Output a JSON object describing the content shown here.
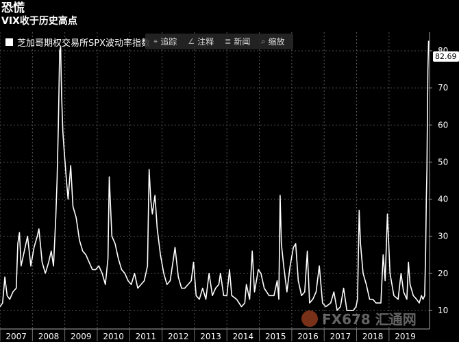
{
  "header": {
    "title": "恐慌",
    "subtitle": "VIX收于历史高点"
  },
  "legend": {
    "label": "芝加哥期权交易所SPX波动率指数"
  },
  "toolbar": {
    "items": [
      {
        "icon": "track-icon",
        "glyph": "⌖",
        "label": "追踪"
      },
      {
        "icon": "annotate-icon",
        "glyph": "∠",
        "label": "注释"
      },
      {
        "icon": "news-icon",
        "glyph": "≣",
        "label": "新闻"
      },
      {
        "icon": "zoom-icon",
        "glyph": "⌕",
        "label": "缩放"
      }
    ]
  },
  "last_value": "82.69",
  "watermark": "FX678 汇通网",
  "chart_data": {
    "type": "line",
    "title": "",
    "series": [
      {
        "name": "芝加哥期权交易所SPX波动率指数"
      }
    ],
    "x_ticks": [
      "2007",
      "2008",
      "2009",
      "2010",
      "2011",
      "2012",
      "2013",
      "2014",
      "2015",
      "2016",
      "2017",
      "2018",
      "2019"
    ],
    "y_ticks": [
      10,
      20,
      30,
      40,
      50,
      60,
      70,
      80
    ],
    "xlim": [
      2007.0,
      2020.25
    ],
    "ylim": [
      5,
      85
    ],
    "grid": true,
    "line_color": "#ffffff",
    "points": [
      [
        2007.0,
        11
      ],
      [
        2007.08,
        12
      ],
      [
        2007.15,
        19
      ],
      [
        2007.22,
        14
      ],
      [
        2007.3,
        13
      ],
      [
        2007.4,
        15
      ],
      [
        2007.5,
        16
      ],
      [
        2007.55,
        28
      ],
      [
        2007.6,
        31
      ],
      [
        2007.65,
        22
      ],
      [
        2007.75,
        26
      ],
      [
        2007.85,
        30
      ],
      [
        2007.95,
        22
      ],
      [
        2008.05,
        27
      ],
      [
        2008.15,
        30
      ],
      [
        2008.2,
        32
      ],
      [
        2008.3,
        23
      ],
      [
        2008.4,
        20
      ],
      [
        2008.5,
        23
      ],
      [
        2008.58,
        26
      ],
      [
        2008.65,
        22
      ],
      [
        2008.72,
        35
      ],
      [
        2008.76,
        45
      ],
      [
        2008.8,
        60
      ],
      [
        2008.84,
        80
      ],
      [
        2008.87,
        81
      ],
      [
        2008.9,
        68
      ],
      [
        2008.94,
        58
      ],
      [
        2008.98,
        53
      ],
      [
        2009.05,
        45
      ],
      [
        2009.1,
        40
      ],
      [
        2009.18,
        49
      ],
      [
        2009.25,
        38
      ],
      [
        2009.35,
        35
      ],
      [
        2009.45,
        29
      ],
      [
        2009.55,
        26
      ],
      [
        2009.65,
        25
      ],
      [
        2009.75,
        23
      ],
      [
        2009.85,
        21
      ],
      [
        2009.95,
        21
      ],
      [
        2010.05,
        22
      ],
      [
        2010.15,
        20
      ],
      [
        2010.25,
        17
      ],
      [
        2010.33,
        24
      ],
      [
        2010.37,
        46
      ],
      [
        2010.4,
        40
      ],
      [
        2010.45,
        30
      ],
      [
        2010.55,
        28
      ],
      [
        2010.65,
        24
      ],
      [
        2010.75,
        21
      ],
      [
        2010.85,
        20
      ],
      [
        2010.95,
        18
      ],
      [
        2011.05,
        17
      ],
      [
        2011.15,
        20
      ],
      [
        2011.25,
        16
      ],
      [
        2011.35,
        17
      ],
      [
        2011.45,
        18
      ],
      [
        2011.55,
        22
      ],
      [
        2011.6,
        48
      ],
      [
        2011.65,
        40
      ],
      [
        2011.7,
        36
      ],
      [
        2011.78,
        41
      ],
      [
        2011.85,
        32
      ],
      [
        2011.95,
        25
      ],
      [
        2012.05,
        20
      ],
      [
        2012.15,
        17
      ],
      [
        2012.25,
        18
      ],
      [
        2012.35,
        24
      ],
      [
        2012.4,
        27
      ],
      [
        2012.5,
        19
      ],
      [
        2012.6,
        16
      ],
      [
        2012.7,
        16
      ],
      [
        2012.8,
        17
      ],
      [
        2012.9,
        18
      ],
      [
        2012.97,
        23
      ],
      [
        2013.05,
        14
      ],
      [
        2013.15,
        13
      ],
      [
        2013.25,
        16
      ],
      [
        2013.35,
        13
      ],
      [
        2013.45,
        20
      ],
      [
        2013.55,
        14
      ],
      [
        2013.65,
        16
      ],
      [
        2013.75,
        17
      ],
      [
        2013.8,
        20
      ],
      [
        2013.9,
        14
      ],
      [
        2014.0,
        14
      ],
      [
        2014.08,
        21
      ],
      [
        2014.15,
        14
      ],
      [
        2014.3,
        13
      ],
      [
        2014.45,
        11
      ],
      [
        2014.55,
        12
      ],
      [
        2014.6,
        17
      ],
      [
        2014.7,
        13
      ],
      [
        2014.78,
        26
      ],
      [
        2014.85,
        15
      ],
      [
        2014.97,
        21
      ],
      [
        2015.05,
        20
      ],
      [
        2015.15,
        16
      ],
      [
        2015.3,
        14
      ],
      [
        2015.45,
        14
      ],
      [
        2015.55,
        18
      ],
      [
        2015.6,
        13
      ],
      [
        2015.64,
        41
      ],
      [
        2015.68,
        28
      ],
      [
        2015.75,
        22
      ],
      [
        2015.85,
        15
      ],
      [
        2015.95,
        22
      ],
      [
        2016.05,
        27
      ],
      [
        2016.12,
        28
      ],
      [
        2016.2,
        18
      ],
      [
        2016.3,
        14
      ],
      [
        2016.4,
        15
      ],
      [
        2016.48,
        26
      ],
      [
        2016.55,
        12
      ],
      [
        2016.65,
        13
      ],
      [
        2016.75,
        15
      ],
      [
        2016.85,
        22
      ],
      [
        2016.95,
        12
      ],
      [
        2017.05,
        11
      ],
      [
        2017.2,
        12
      ],
      [
        2017.3,
        15
      ],
      [
        2017.4,
        10
      ],
      [
        2017.5,
        11
      ],
      [
        2017.6,
        16
      ],
      [
        2017.7,
        10
      ],
      [
        2017.8,
        10
      ],
      [
        2017.9,
        10
      ],
      [
        2017.98,
        11
      ],
      [
        2018.03,
        13
      ],
      [
        2018.08,
        37
      ],
      [
        2018.12,
        28
      ],
      [
        2018.2,
        20
      ],
      [
        2018.3,
        17
      ],
      [
        2018.4,
        13
      ],
      [
        2018.5,
        13
      ],
      [
        2018.6,
        12
      ],
      [
        2018.75,
        12
      ],
      [
        2018.82,
        25
      ],
      [
        2018.88,
        18
      ],
      [
        2018.95,
        36
      ],
      [
        2019.03,
        20
      ],
      [
        2019.15,
        14
      ],
      [
        2019.28,
        13
      ],
      [
        2019.37,
        20
      ],
      [
        2019.45,
        15
      ],
      [
        2019.55,
        13
      ],
      [
        2019.6,
        23
      ],
      [
        2019.65,
        17
      ],
      [
        2019.75,
        14
      ],
      [
        2019.85,
        13
      ],
      [
        2019.93,
        12
      ],
      [
        2020.0,
        14
      ],
      [
        2020.05,
        13
      ],
      [
        2020.1,
        14
      ],
      [
        2020.13,
        26
      ],
      [
        2020.15,
        40
      ],
      [
        2020.17,
        48
      ],
      [
        2020.18,
        58
      ],
      [
        2020.2,
        75
      ],
      [
        2020.22,
        82.69
      ]
    ]
  }
}
